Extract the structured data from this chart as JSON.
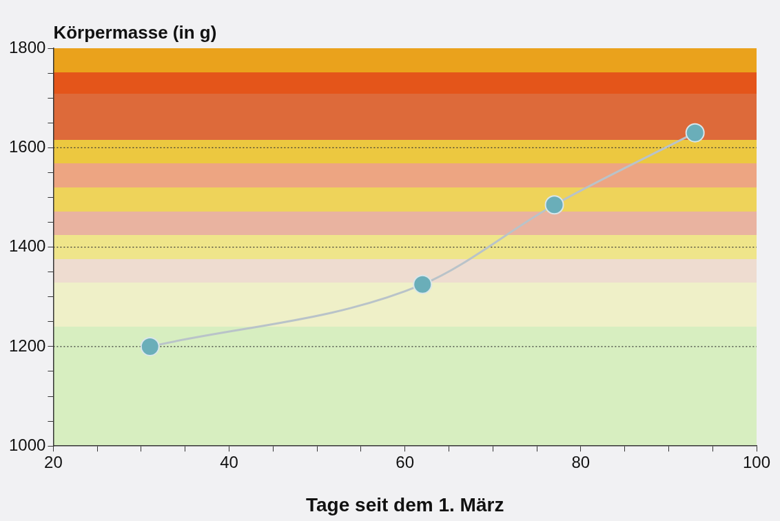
{
  "chart_data": {
    "type": "line",
    "ylabel": "Körpermasse (in g)",
    "xlabel": "Tage seit dem 1. März",
    "x": [
      31,
      62,
      77,
      93
    ],
    "series": [
      {
        "color": "#6aaeb9",
        "values": [
          1200,
          1325,
          1485,
          1630
        ]
      }
    ],
    "xlim": [
      20,
      100
    ],
    "ylim": [
      1000,
      1800
    ],
    "xticks": [
      20,
      {
        "value": 25,
        "label": null
      },
      {
        "value": 30,
        "label": null
      },
      {
        "value": 35,
        "label": null
      },
      40,
      {
        "value": 45,
        "label": null
      },
      {
        "value": 50,
        "label": null
      },
      {
        "value": 55,
        "label": null
      },
      60,
      {
        "value": 65,
        "label": null
      },
      {
        "value": 70,
        "label": null
      },
      {
        "value": 75,
        "label": null
      },
      80,
      {
        "value": 85,
        "label": null
      },
      {
        "value": 90,
        "label": null
      },
      {
        "value": 95,
        "label": null
      },
      100
    ],
    "yticks": [
      1000,
      {
        "value": 1050,
        "label": null
      },
      {
        "value": 1100,
        "label": null
      },
      {
        "value": 1150,
        "label": null
      },
      1200,
      {
        "value": 1250,
        "label": null
      },
      {
        "value": 1300,
        "label": null
      },
      {
        "value": 1350,
        "label": null
      },
      1400,
      {
        "value": 1450,
        "label": null
      },
      {
        "value": 1500,
        "label": null
      },
      {
        "value": 1550,
        "label": null
      },
      1600,
      {
        "value": 1650,
        "label": null
      },
      {
        "value": 1700,
        "label": null
      },
      {
        "value": 1750,
        "label": null
      },
      1800
    ],
    "grid": "y",
    "marker": "circle",
    "line_style": "solid",
    "legend": false
  }
}
